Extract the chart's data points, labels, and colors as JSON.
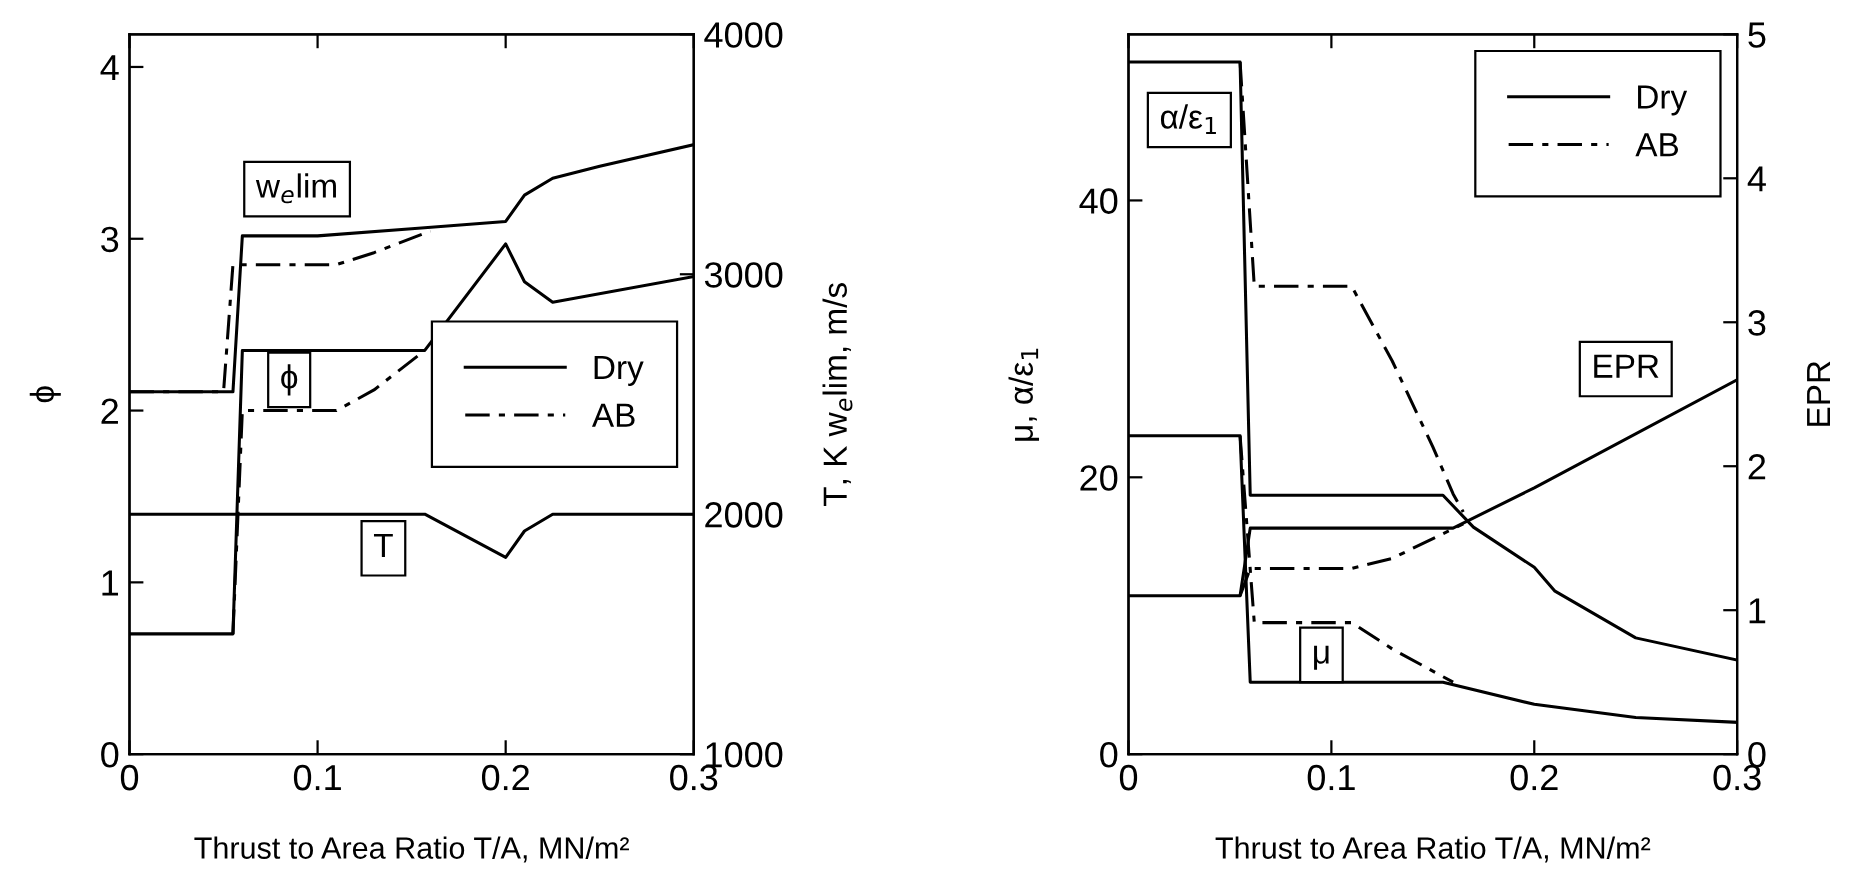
{
  "chart_data": [
    {
      "type": "line",
      "xlabel": "Thrust to Area Ratio T/A, MN/m²",
      "ylabel": "ϕ",
      "y2label": "T, K w$_{e}$lim, m/s",
      "xlim": [
        0,
        0.3
      ],
      "xticks": [
        0,
        0.1,
        0.2,
        0.3
      ],
      "ylim": [
        0,
        4.19
      ],
      "yticks": [
        0,
        1,
        2,
        3,
        4
      ],
      "y2lim": [
        1000,
        4000
      ],
      "y2ticks": [
        1000,
        2000,
        3000,
        4000
      ],
      "grid": false,
      "legend": "right",
      "marker": "none",
      "annotations": [
        "w$_{e}$lim",
        "ϕ",
        "T"
      ],
      "series": [
        {
          "name": "Dry",
          "color": "#000000",
          "line_style": "solid",
          "axis": "y2",
          "x": [
            0,
            0.055,
            0.06,
            0.1,
            0.15,
            0.2,
            0.21,
            0.225,
            0.25,
            0.3
          ],
          "values": [
            2510,
            2510,
            3160,
            3160,
            3190,
            3220,
            3330,
            3400,
            3450,
            3540
          ]
        },
        {
          "name": "AB",
          "color": "#000000",
          "line_style": "dashed",
          "axis": "y2",
          "x": [
            0,
            0.05,
            0.055,
            0.11,
            0.13,
            0.16
          ],
          "values": [
            2510,
            2510,
            3040,
            3040,
            3090,
            3180
          ]
        },
        {
          "name": "Dry",
          "color": "#000000",
          "line_style": "solid",
          "x": [
            0,
            0.055,
            0.06,
            0.157,
            0.2,
            0.21,
            0.225,
            0.3
          ],
          "values": [
            0.7,
            0.7,
            2.35,
            2.35,
            2.97,
            2.75,
            2.63,
            2.78
          ]
        },
        {
          "name": "AB",
          "color": "#000000",
          "line_style": "dashed",
          "x": [
            0.055,
            0.06,
            0.11,
            0.13,
            0.157
          ],
          "values": [
            0.7,
            2.0,
            2.0,
            2.12,
            2.35
          ]
        },
        {
          "color": "#000000",
          "line_style": "solid",
          "axis": "y2",
          "x": [
            0,
            0.157,
            0.2,
            0.21,
            0.225,
            0.3
          ],
          "values": [
            2000,
            2000,
            1820,
            1930,
            2000,
            2000
          ]
        }
      ]
    },
    {
      "type": "line",
      "xlabel": "Thrust to Area Ratio T/A, MN/m²",
      "ylabel": "μ, α/ε$_{1}$",
      "y2label": "EPR",
      "xlim": [
        0,
        0.3
      ],
      "xticks": [
        0,
        0.1,
        0.2,
        0.3
      ],
      "ylim": [
        0,
        52
      ],
      "yticks": [
        0,
        20,
        40
      ],
      "y2lim": [
        0,
        5
      ],
      "y2ticks": [
        0,
        1,
        2,
        3,
        4,
        5
      ],
      "grid": false,
      "legend": "top right",
      "marker": "none",
      "annotations": [
        "α/ε$_{1}$",
        "EPR",
        "μ"
      ],
      "series": [
        {
          "name": "Dry",
          "color": "#000000",
          "line_style": "solid",
          "x": [
            0,
            0.055,
            0.06,
            0.155,
            0.17,
            0.2,
            0.21,
            0.25,
            0.3
          ],
          "values": [
            50,
            50,
            18.7,
            18.7,
            16.4,
            13.5,
            11.8,
            8.4,
            6.8
          ]
        },
        {
          "name": "AB",
          "color": "#000000",
          "line_style": "dashed",
          "x": [
            0.055,
            0.062,
            0.11,
            0.13,
            0.15,
            0.16,
            0.165
          ],
          "values": [
            50,
            33.8,
            33.8,
            28.4,
            22.2,
            18.8,
            17.5
          ]
        },
        {
          "name": "Dry",
          "color": "#000000",
          "line_style": "solid",
          "axis": "y2",
          "x": [
            0,
            0.055,
            0.06,
            0.16,
            0.2,
            0.3
          ],
          "values": [
            1.1,
            1.1,
            1.57,
            1.57,
            1.85,
            2.6
          ]
        },
        {
          "name": "AB",
          "color": "#000000",
          "line_style": "dashed",
          "axis": "y2",
          "x": [
            0.055,
            0.06,
            0.11,
            0.13,
            0.165
          ],
          "values": [
            1.1,
            1.29,
            1.29,
            1.36,
            1.6
          ]
        },
        {
          "name": "Dry",
          "color": "#000000",
          "line_style": "solid",
          "x": [
            0,
            0.055,
            0.06,
            0.155,
            0.2,
            0.25,
            0.3
          ],
          "values": [
            23,
            23,
            5.2,
            5.2,
            3.6,
            2.65,
            2.3
          ]
        },
        {
          "name": "AB",
          "color": "#000000",
          "line_style": "dashed",
          "x": [
            0.055,
            0.062,
            0.11,
            0.13,
            0.16
          ],
          "values": [
            23,
            9.5,
            9.5,
            7.6,
            5.2
          ]
        }
      ]
    }
  ]
}
